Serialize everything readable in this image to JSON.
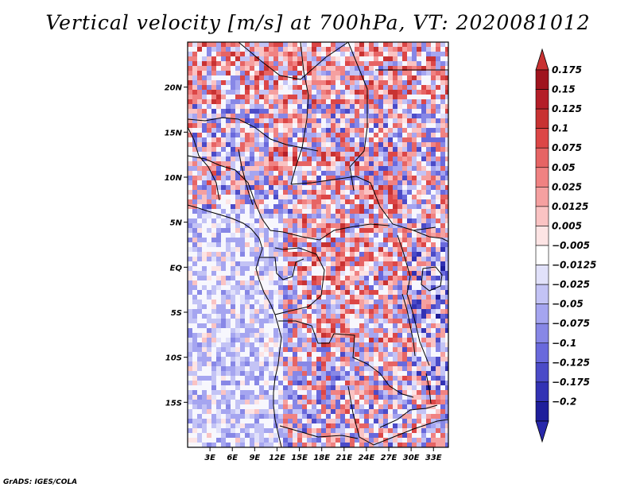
{
  "title": "Vertical velocity [m/s] at 700hPa, VT: 2020081012",
  "credit": "GrADS: IGES/COLA",
  "map": {
    "lon_range": [
      0,
      35
    ],
    "lat_range": [
      -20,
      25
    ],
    "lat_ticks": [
      {
        "value": 20,
        "label": "20N"
      },
      {
        "value": 15,
        "label": "15N"
      },
      {
        "value": 10,
        "label": "10N"
      },
      {
        "value": 5,
        "label": "5N"
      },
      {
        "value": 0,
        "label": "EQ"
      },
      {
        "value": -5,
        "label": "5S"
      },
      {
        "value": -10,
        "label": "10S"
      },
      {
        "value": -15,
        "label": "15S"
      }
    ],
    "lon_ticks": [
      {
        "value": 3,
        "label": "3E"
      },
      {
        "value": 6,
        "label": "6E"
      },
      {
        "value": 9,
        "label": "9E"
      },
      {
        "value": 12,
        "label": "12E"
      },
      {
        "value": 15,
        "label": "15E"
      },
      {
        "value": 18,
        "label": "18E"
      },
      {
        "value": 21,
        "label": "21E"
      },
      {
        "value": 24,
        "label": "24E"
      },
      {
        "value": 27,
        "label": "27E"
      },
      {
        "value": 30,
        "label": "30E"
      },
      {
        "value": 33,
        "label": "33E"
      }
    ]
  },
  "colorbar": {
    "units": "m/s",
    "levels": [
      {
        "label": "0.175",
        "color": "#a0141e"
      },
      {
        "label": "0.15",
        "color": "#b41e28"
      },
      {
        "label": "0.125",
        "color": "#c83232"
      },
      {
        "label": "0.1",
        "color": "#dc4646"
      },
      {
        "label": "0.075",
        "color": "#e66464"
      },
      {
        "label": "0.05",
        "color": "#f08282"
      },
      {
        "label": "0.025",
        "color": "#f5a0a0"
      },
      {
        "label": "0.0125",
        "color": "#fac3c3"
      },
      {
        "label": "0.005",
        "color": "#fde4e4"
      },
      {
        "label": "−0.005",
        "color": "#ffffff"
      },
      {
        "label": "−0.0125",
        "color": "#e1e1fa"
      },
      {
        "label": "−0.025",
        "color": "#c3c3f5"
      },
      {
        "label": "−0.05",
        "color": "#a5a5f0"
      },
      {
        "label": "−0.075",
        "color": "#8787e6"
      },
      {
        "label": "−0.1",
        "color": "#6969dc"
      },
      {
        "label": "−0.125",
        "color": "#4b4bc8"
      },
      {
        "label": "−0.175",
        "color": "#3232b4"
      },
      {
        "label": "−0.2",
        "color": "#1e1e9b"
      }
    ],
    "over_color": "#c83232",
    "under_color": "#2828aa"
  },
  "colors": {
    "coast": "#000000",
    "ocean_tint": "#e6e6fb",
    "upward": "#dc4646",
    "downward": "#5a5ad7"
  }
}
